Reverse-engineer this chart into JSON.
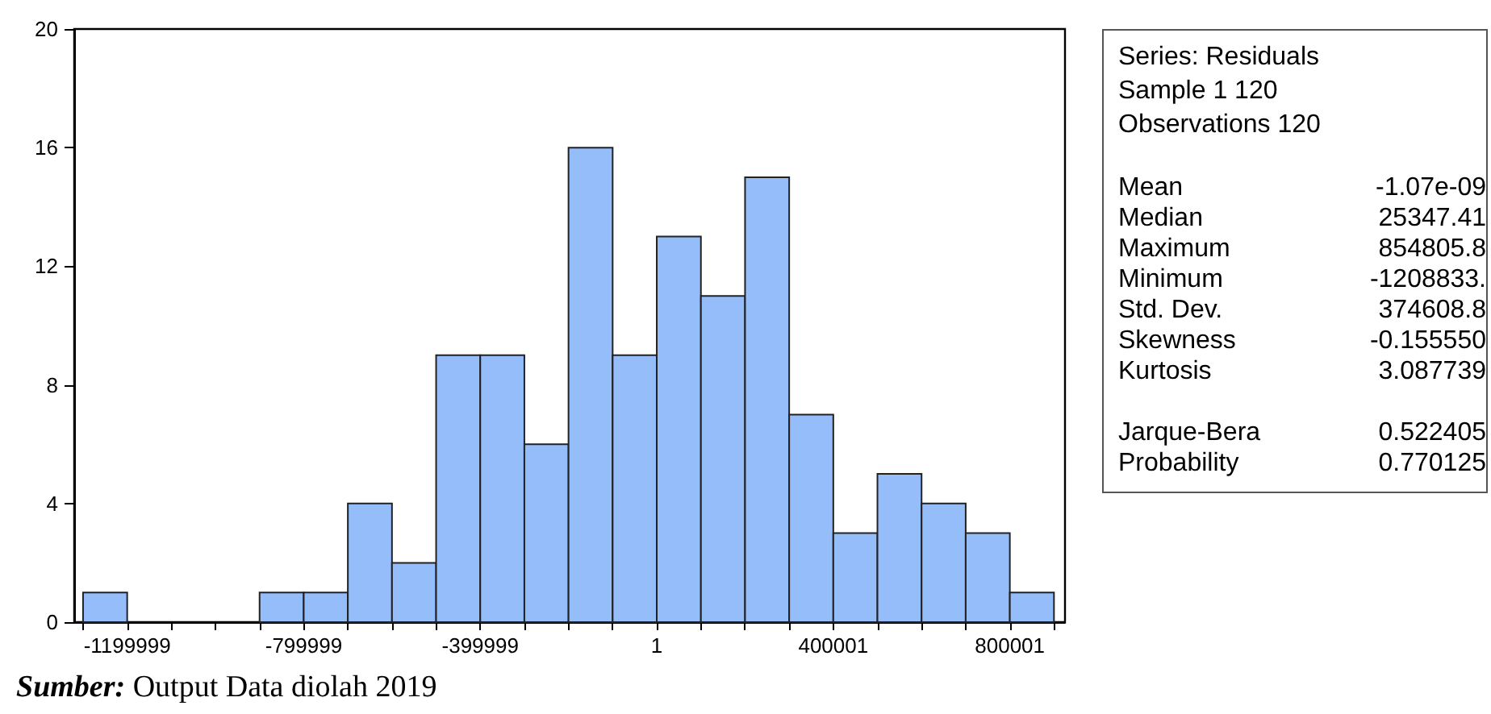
{
  "chart_data": [
    {
      "type": "histogram",
      "bins": [
        -1299999,
        -1199999,
        -1099999,
        -999999,
        -899999,
        -799999,
        -699999,
        -599999,
        -499999,
        -399999,
        -299999,
        -199999,
        -99999,
        1,
        100001,
        200001,
        300001,
        400001,
        500001,
        600001,
        700001,
        800001,
        900001
      ],
      "values": [
        1,
        0,
        0,
        0,
        1,
        1,
        4,
        2,
        9,
        9,
        6,
        16,
        9,
        13,
        11,
        15,
        7,
        3,
        5,
        4,
        3,
        1
      ],
      "color": "#94bdfa",
      "xlim": [
        -1320000,
        925000
      ],
      "xticks": [
        {
          "value": -1299999,
          "label": null
        },
        -1199999,
        {
          "value": -1099999,
          "label": null
        },
        {
          "value": -999999,
          "label": null
        },
        {
          "value": -899999,
          "label": null
        },
        -799999,
        {
          "value": -699999,
          "label": null
        },
        {
          "value": -599999,
          "label": null
        },
        {
          "value": -499999,
          "label": null
        },
        -399999,
        {
          "value": -299999,
          "label": null
        },
        {
          "value": -199999,
          "label": null
        },
        {
          "value": -99999,
          "label": null
        },
        1,
        {
          "value": 100001,
          "label": null
        },
        {
          "value": 200001,
          "label": null
        },
        {
          "value": 300001,
          "label": null
        },
        400001,
        {
          "value": 500001,
          "label": null
        },
        {
          "value": 600001,
          "label": null
        },
        {
          "value": 700001,
          "label": null
        },
        800001,
        {
          "value": 900001,
          "label": null
        }
      ],
      "ylim": [
        0,
        20
      ],
      "yticks": [
        0,
        4,
        8,
        12,
        16,
        20
      ],
      "grid": false,
      "annotations": [
        "Sumber: Output Data diolah 2019"
      ]
    },
    {
      "type": "other",
      "annotations": [
        "Series: Residuals",
        "Sample 1 120",
        "Observations 120",
        "Mean",
        "-1.07e-09",
        "Median",
        "25347.41",
        "Maximum",
        "854805.8",
        "Minimum",
        "-1208833.",
        "Std. Dev.",
        "374608.8",
        "Skewness",
        "-0.155550",
        "Kurtosis",
        "3.087739",
        "Jarque-Bera",
        "0.522405",
        "Probability",
        "0.770125"
      ]
    }
  ]
}
